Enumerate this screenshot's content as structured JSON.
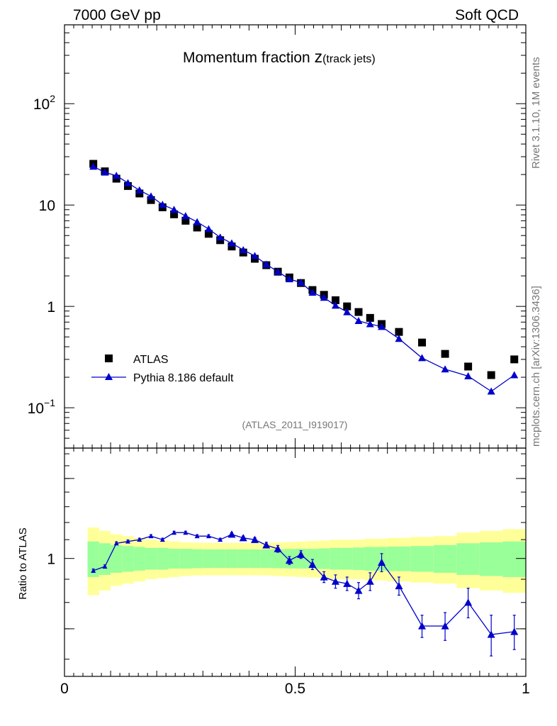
{
  "header": {
    "left": "7000 GeV pp",
    "right": "Soft QCD"
  },
  "side": {
    "rivet": "Rivet 3.1.10,  1M events",
    "mcplots": "mcplots.cern.ch [arXiv:1306.3436]"
  },
  "chart_data": [
    {
      "type": "scatter",
      "title_main": "Momentum fraction ",
      "title_z": "z",
      "title_sub": "(track jets)",
      "watermark": "(ATLAS_2011_I919017)",
      "yscale": "log",
      "xlim": [
        0,
        1
      ],
      "ylim": [
        0.04,
        600
      ],
      "y_ticks": [
        {
          "value": 0.1,
          "base": "10",
          "exp": "−1"
        },
        {
          "value": 1,
          "base": "1",
          "exp": ""
        },
        {
          "value": 10,
          "base": "10",
          "exp": ""
        },
        {
          "value": 100,
          "base": "10",
          "exp": "2"
        }
      ],
      "legend_position": "lower-left",
      "x": [
        0.0625,
        0.0875,
        0.1125,
        0.1375,
        0.1625,
        0.1875,
        0.2125,
        0.2375,
        0.2625,
        0.2875,
        0.3125,
        0.3375,
        0.3625,
        0.3875,
        0.4125,
        0.4375,
        0.4625,
        0.4875,
        0.5125,
        0.5375,
        0.5625,
        0.5875,
        0.6125,
        0.6375,
        0.6625,
        0.6875,
        0.725,
        0.775,
        0.825,
        0.875,
        0.925,
        0.975
      ],
      "series": [
        {
          "name": "ATLAS",
          "color": "#000000",
          "marker": "square",
          "values": [
            25.5,
            21.5,
            18.2,
            15.4,
            13.0,
            11.2,
            9.5,
            8.1,
            7.0,
            6.0,
            5.2,
            4.5,
            3.9,
            3.4,
            2.95,
            2.55,
            2.2,
            1.93,
            1.7,
            1.45,
            1.3,
            1.15,
            1.0,
            0.88,
            0.77,
            0.67,
            0.56,
            0.44,
            0.34,
            0.255,
            0.21,
            0.3
          ]
        },
        {
          "name": "Pythia 8.186 default",
          "color": "#0000cc",
          "marker": "triangle",
          "values": [
            24.0,
            21.0,
            19.5,
            16.5,
            14.0,
            12.2,
            10.1,
            9.0,
            7.8,
            6.8,
            5.8,
            4.8,
            4.2,
            3.6,
            3.15,
            2.6,
            2.2,
            1.86,
            1.72,
            1.37,
            1.22,
            1.02,
            0.88,
            0.72,
            0.67,
            0.63,
            0.48,
            0.31,
            0.24,
            0.205,
            0.145,
            0.21
          ]
        }
      ]
    },
    {
      "type": "line",
      "ylabel": "Ratio to ATLAS",
      "yscale": "log",
      "ylim": [
        0.55,
        1.75
      ],
      "xlim": [
        0,
        1
      ],
      "y_ticks": [
        {
          "value": 1,
          "label": "1"
        }
      ],
      "x_ticks": [
        {
          "value": 0,
          "label": "0"
        },
        {
          "value": 0.5,
          "label": "0.5"
        },
        {
          "value": 1,
          "label": "1"
        }
      ],
      "band_colors": {
        "stat": "#99ff99",
        "total": "#ffff99"
      },
      "bands": {
        "x_edges": [
          0.05,
          0.075,
          0.1,
          0.125,
          0.15,
          0.175,
          0.2,
          0.225,
          0.25,
          0.275,
          0.3,
          0.325,
          0.35,
          0.375,
          0.4,
          0.425,
          0.45,
          0.475,
          0.5,
          0.525,
          0.55,
          0.575,
          0.6,
          0.625,
          0.65,
          0.675,
          0.7,
          0.75,
          0.8,
          0.85,
          0.9,
          0.95,
          1.0
        ],
        "stat_half": [
          0.09,
          0.08,
          0.07,
          0.065,
          0.06,
          0.055,
          0.055,
          0.05,
          0.05,
          0.048,
          0.047,
          0.047,
          0.047,
          0.047,
          0.047,
          0.047,
          0.048,
          0.049,
          0.05,
          0.05,
          0.052,
          0.055,
          0.055,
          0.057,
          0.06,
          0.06,
          0.062,
          0.065,
          0.07,
          0.08,
          0.085,
          0.09
        ],
        "total_half": [
          0.17,
          0.15,
          0.13,
          0.12,
          0.11,
          0.1,
          0.095,
          0.09,
          0.085,
          0.083,
          0.082,
          0.082,
          0.082,
          0.082,
          0.082,
          0.083,
          0.085,
          0.087,
          0.09,
          0.092,
          0.095,
          0.1,
          0.1,
          0.1,
          0.105,
          0.105,
          0.11,
          0.115,
          0.12,
          0.14,
          0.15,
          0.16
        ]
      },
      "ratio": {
        "values": [
          0.94,
          0.96,
          1.08,
          1.09,
          1.1,
          1.12,
          1.1,
          1.14,
          1.14,
          1.12,
          1.12,
          1.1,
          1.13,
          1.11,
          1.1,
          1.07,
          1.05,
          0.99,
          1.02,
          0.97,
          0.91,
          0.89,
          0.88,
          0.85,
          0.89,
          0.98,
          0.87,
          0.71,
          0.71,
          0.8,
          0.68,
          0.69
        ],
        "err": [
          0.008,
          0.008,
          0.008,
          0.008,
          0.008,
          0.008,
          0.008,
          0.008,
          0.008,
          0.008,
          0.008,
          0.008,
          0.01,
          0.01,
          0.012,
          0.015,
          0.018,
          0.02,
          0.02,
          0.025,
          0.025,
          0.03,
          0.03,
          0.035,
          0.04,
          0.045,
          0.04,
          0.04,
          0.05,
          0.06,
          0.07,
          0.06
        ],
        "first_marked_index": 12
      }
    }
  ]
}
